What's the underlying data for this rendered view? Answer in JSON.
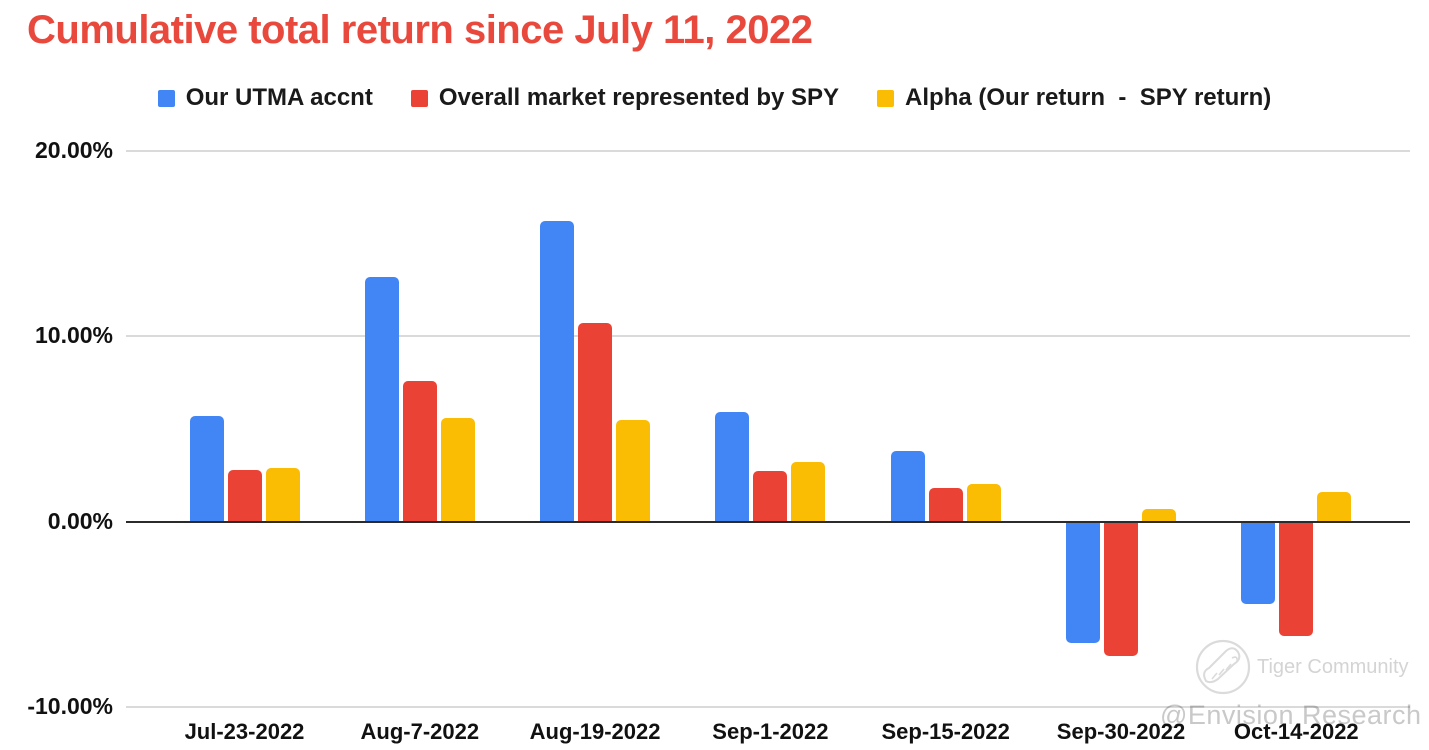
{
  "title": {
    "text": "Cumulative total return since July 11, 2022",
    "color": "#e8493c"
  },
  "watermark": {
    "logo_label": "Tiger Community",
    "overlay_text": "@Envision Research"
  },
  "chart_data": {
    "type": "bar",
    "title": "Cumulative total return since July 11, 2022",
    "categories": [
      "Jul-23-2022",
      "Aug-7-2022",
      "Aug-19-2022",
      "Sep-1-2022",
      "Sep-15-2022",
      "Sep-30-2022",
      "Oct-14-2022"
    ],
    "series": [
      {
        "name": "Our UTMA accnt",
        "color": "#4285f4",
        "values": [
          5.7,
          13.2,
          16.2,
          5.9,
          3.8,
          -6.5,
          -4.4
        ]
      },
      {
        "name": "Overall market represented by SPY",
        "color": "#ea4335",
        "values": [
          2.8,
          7.6,
          10.7,
          2.7,
          1.8,
          -7.2,
          -6.1
        ]
      },
      {
        "name": "Alpha (Our return  -  SPY return)",
        "color": "#fbbc04",
        "values": [
          2.9,
          5.6,
          5.5,
          3.2,
          2.0,
          0.7,
          1.6
        ]
      }
    ],
    "y_axis": {
      "ticks": [
        {
          "label": "20.00%",
          "value": 20
        },
        {
          "label": "10.00%",
          "value": 10
        },
        {
          "label": "0.00%",
          "value": 0
        },
        {
          "label": "-10.00%",
          "value": -10
        }
      ],
      "range": [
        -10,
        20
      ]
    },
    "xlabel": "",
    "ylabel": "",
    "grid": true,
    "legend_position": "top"
  }
}
